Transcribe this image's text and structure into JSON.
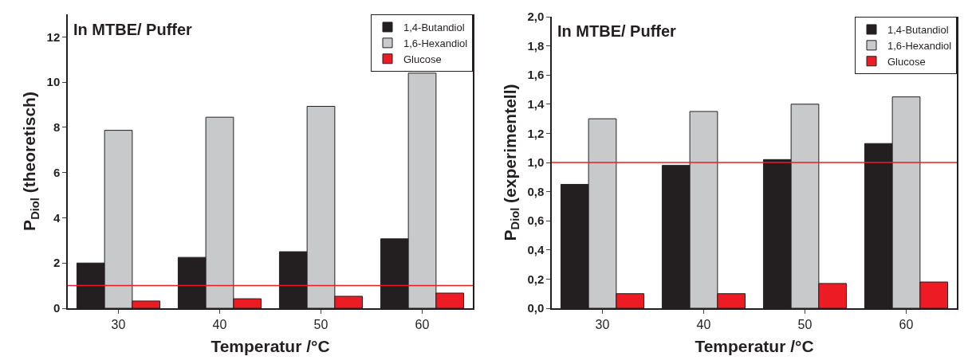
{
  "chart_data": [
    {
      "type": "bar",
      "title": "In MTBE/ Puffer",
      "xlabel": "Temperatur /°C",
      "ylabel": "P$_{Diol}$ (theoretisch)",
      "categories": [
        "30",
        "40",
        "50",
        "60"
      ],
      "series": [
        {
          "name": "1,4-Butandiol",
          "color": "#231f20",
          "values": [
            2.0,
            2.25,
            2.5,
            3.07
          ]
        },
        {
          "name": "1,6-Hexandiol",
          "color": "#c8c9cb",
          "values": [
            7.87,
            8.45,
            8.93,
            10.4
          ]
        },
        {
          "name": "Glucose",
          "color": "#ed1c24",
          "values": [
            0.32,
            0.42,
            0.53,
            0.67
          ]
        }
      ],
      "ylim": [
        0,
        13
      ],
      "yticks": [
        0,
        2,
        4,
        6,
        8,
        10,
        12
      ],
      "ref_lines": [
        {
          "axis": "y",
          "value": 1,
          "color": "#ed1c24"
        }
      ],
      "legend": "top right",
      "grid": false
    },
    {
      "type": "bar",
      "title": "In MTBE/ Puffer",
      "xlabel": "Temperatur /°C",
      "ylabel": "P$_{Diol}$ (experimentell)",
      "categories": [
        "30",
        "40",
        "50",
        "60"
      ],
      "series": [
        {
          "name": "1,4-Butandiol",
          "color": "#231f20",
          "values": [
            0.85,
            0.98,
            1.02,
            1.13
          ]
        },
        {
          "name": "1,6-Hexandiol",
          "color": "#c8c9cb",
          "values": [
            1.3,
            1.35,
            1.4,
            1.45
          ]
        },
        {
          "name": "Glucose",
          "color": "#ed1c24",
          "values": [
            0.1,
            0.1,
            0.17,
            0.18
          ]
        }
      ],
      "ylim": [
        0,
        2.0
      ],
      "yticks": [
        {
          "value": 0,
          "label": "0,0"
        },
        {
          "value": 0.2,
          "label": "0,2"
        },
        {
          "value": 0.4,
          "label": "0,4"
        },
        {
          "value": 0.6,
          "label": "0,6"
        },
        {
          "value": 0.8,
          "label": "0,8"
        },
        {
          "value": 1.0,
          "label": "1,0"
        },
        {
          "value": 1.2,
          "label": "1,2"
        },
        {
          "value": 1.4,
          "label": "1,4"
        },
        {
          "value": 1.6,
          "label": "1,6"
        },
        {
          "value": 1.8,
          "label": "1,8"
        },
        {
          "value": 2.0,
          "label": "2,0"
        }
      ],
      "ref_lines": [
        {
          "axis": "y",
          "value": 1.0,
          "color": "#ed1c24"
        }
      ],
      "legend": "top right",
      "grid": false
    }
  ]
}
